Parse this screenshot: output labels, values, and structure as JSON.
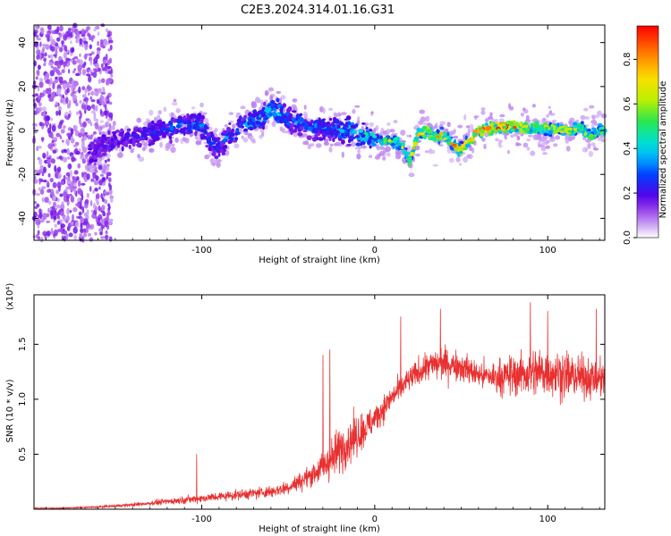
{
  "title": "C2E3.2024.314.01.16.G31",
  "colors": {
    "snr_line": "#e83030",
    "axis": "#000000",
    "background": "#ffffff"
  },
  "chart_data": [
    {
      "type": "heatmap",
      "name": "spectrogram",
      "xlabel": "Height of straight line (km)",
      "ylabel": "Frequency (Hz)",
      "xlim": [
        -197,
        133
      ],
      "ylim": [
        -50,
        48
      ],
      "xticks": [
        -100,
        0,
        100
      ],
      "xtick_labels": [
        "-100",
        "0",
        "100"
      ],
      "yticks": [
        -40,
        -20,
        0,
        20,
        40
      ],
      "ytick_labels": [
        "-40",
        "-20",
        "0",
        "20",
        "40"
      ],
      "colorbar": {
        "label": "Normalized spectral amplitude",
        "range": [
          0.0,
          0.95
        ],
        "ticks": [
          0.0,
          0.2,
          0.4,
          0.6,
          0.8
        ],
        "tick_labels": [
          "0.0",
          "0.2",
          "0.4",
          "0.6",
          "0.8"
        ],
        "colormap": "rainbow"
      },
      "ridge": {
        "x": [
          -165,
          -160,
          -150,
          -140,
          -130,
          -120,
          -110,
          -100,
          -95,
          -90,
          -85,
          -80,
          -75,
          -70,
          -65,
          -60,
          -55,
          -50,
          -40,
          -30,
          -20,
          -10,
          0,
          10,
          15,
          20,
          25,
          30,
          35,
          40,
          45,
          50,
          55,
          60,
          70,
          80,
          90,
          100,
          110,
          120,
          125,
          130
        ],
        "y": [
          -10,
          -8,
          -5,
          -3,
          -1,
          1,
          3,
          2,
          -5,
          -8,
          -2,
          0,
          3,
          4,
          6,
          10,
          8,
          5,
          2,
          1,
          0,
          -1,
          -4,
          -5,
          -6,
          -14,
          -2,
          0,
          -3,
          -2,
          -6,
          -9,
          -4,
          0,
          1,
          2,
          1,
          1,
          0,
          1,
          -3,
          0
        ],
        "strength": [
          0.15,
          0.2,
          0.2,
          0.2,
          0.25,
          0.25,
          0.3,
          0.3,
          0.25,
          0.25,
          0.3,
          0.3,
          0.35,
          0.35,
          0.35,
          0.4,
          0.4,
          0.3,
          0.3,
          0.3,
          0.35,
          0.4,
          0.45,
          0.55,
          0.6,
          0.65,
          0.65,
          0.7,
          0.7,
          0.75,
          0.75,
          0.7,
          0.75,
          0.8,
          0.85,
          0.8,
          0.75,
          0.7,
          0.7,
          0.65,
          0.6,
          0.55
        ]
      }
    },
    {
      "type": "line",
      "name": "snr",
      "xlabel": "Height of straight line (km)",
      "ylabel": "SNR (10 * v/v)",
      "y_multiplier_label": "(x10⁴)",
      "xlim": [
        -197,
        133
      ],
      "ylim": [
        0,
        1.95
      ],
      "xticks": [
        -100,
        0,
        100
      ],
      "xtick_labels": [
        "-100",
        "0",
        "100"
      ],
      "yticks": [
        0.5,
        1.0,
        1.5
      ],
      "ytick_labels": [
        "0.5",
        "1.0",
        "1.5"
      ],
      "series": [
        {
          "name": "SNR",
          "envelope_x": [
            -197,
            -180,
            -160,
            -140,
            -120,
            -100,
            -80,
            -60,
            -50,
            -40,
            -30,
            -25,
            -20,
            -15,
            -10,
            -5,
            0,
            5,
            10,
            20,
            30,
            40,
            50,
            60,
            70,
            80,
            90,
            100,
            110,
            120,
            133
          ],
          "envelope_mean": [
            0.01,
            0.01,
            0.02,
            0.04,
            0.07,
            0.1,
            0.13,
            0.16,
            0.2,
            0.28,
            0.38,
            0.45,
            0.55,
            0.62,
            0.68,
            0.74,
            0.82,
            0.92,
            1.02,
            1.18,
            1.3,
            1.33,
            1.3,
            1.22,
            1.2,
            1.22,
            1.24,
            1.25,
            1.22,
            1.2,
            1.18
          ],
          "envelope_spread": [
            0.01,
            0.01,
            0.02,
            0.03,
            0.05,
            0.07,
            0.08,
            0.1,
            0.12,
            0.16,
            0.25,
            0.35,
            0.4,
            0.38,
            0.35,
            0.3,
            0.25,
            0.22,
            0.2,
            0.2,
            0.25,
            0.28,
            0.25,
            0.22,
            0.28,
            0.35,
            0.4,
            0.42,
            0.4,
            0.35,
            0.32
          ],
          "peaks": [
            {
              "x": -103,
              "y": 0.5
            },
            {
              "x": -30,
              "y": 1.4
            },
            {
              "x": -26,
              "y": 1.45
            },
            {
              "x": 15,
              "y": 1.75
            },
            {
              "x": 38,
              "y": 1.82
            },
            {
              "x": 90,
              "y": 1.88
            },
            {
              "x": 100,
              "y": 1.8
            },
            {
              "x": 128,
              "y": 1.82
            }
          ]
        }
      ]
    }
  ]
}
